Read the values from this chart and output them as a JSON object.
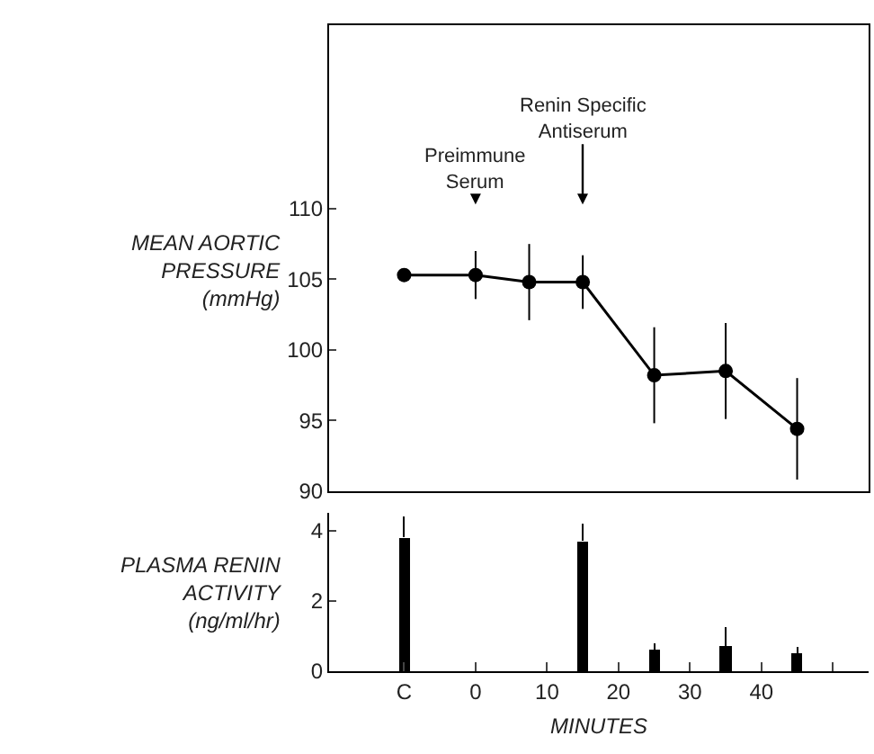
{
  "chart_data": [
    {
      "type": "line",
      "ylabel": "MEAN AORTIC\nPRESSURE\n(mmHg)",
      "x": [
        -10,
        0,
        7.5,
        15,
        25,
        35,
        45
      ],
      "series": [
        {
          "color": "#000000",
          "values": [
            105.3,
            105.3,
            104.8,
            104.8,
            98.2,
            98.5,
            94.4
          ],
          "errors": [
            null,
            1.7,
            2.7,
            1.9,
            3.4,
            3.4,
            3.6
          ]
        }
      ],
      "xlim": [
        -20.5,
        55
      ],
      "ylim": [
        90,
        123
      ],
      "yticks": [
        90,
        95,
        100,
        105,
        110
      ],
      "tick_labels": "y",
      "marker": "circle",
      "line_style": "solid",
      "legend": false,
      "annotations": [
        "Preimmune\nSerum",
        "Renin Specific\nAntiserum"
      ]
    },
    {
      "type": "bar",
      "ylabel": "PLASMA RENIN\nACTIVITY\n(ng/ml/hr)",
      "xlabel": "MINUTES",
      "x": [
        -10,
        15,
        25,
        35,
        45
      ],
      "series": [
        {
          "color": "#000000",
          "values": [
            3.8,
            3.7,
            0.6,
            0.7,
            0.5
          ],
          "errors": [
            [
              3.8,
              4.4
            ],
            [
              3.7,
              4.2
            ],
            [
              0.6,
              0.8
            ],
            [
              0.7,
              1.25
            ],
            [
              0.5,
              0.7
            ]
          ]
        }
      ],
      "xlim": [
        -20.5,
        55
      ],
      "xticks": [
        {
          "value": -10,
          "label": "C"
        },
        0,
        10,
        20,
        30,
        40,
        {
          "value": 50,
          "label": null
        }
      ],
      "ylim": [
        0,
        4.5
      ],
      "yticks": [
        0,
        2,
        4
      ],
      "legend": false
    }
  ]
}
